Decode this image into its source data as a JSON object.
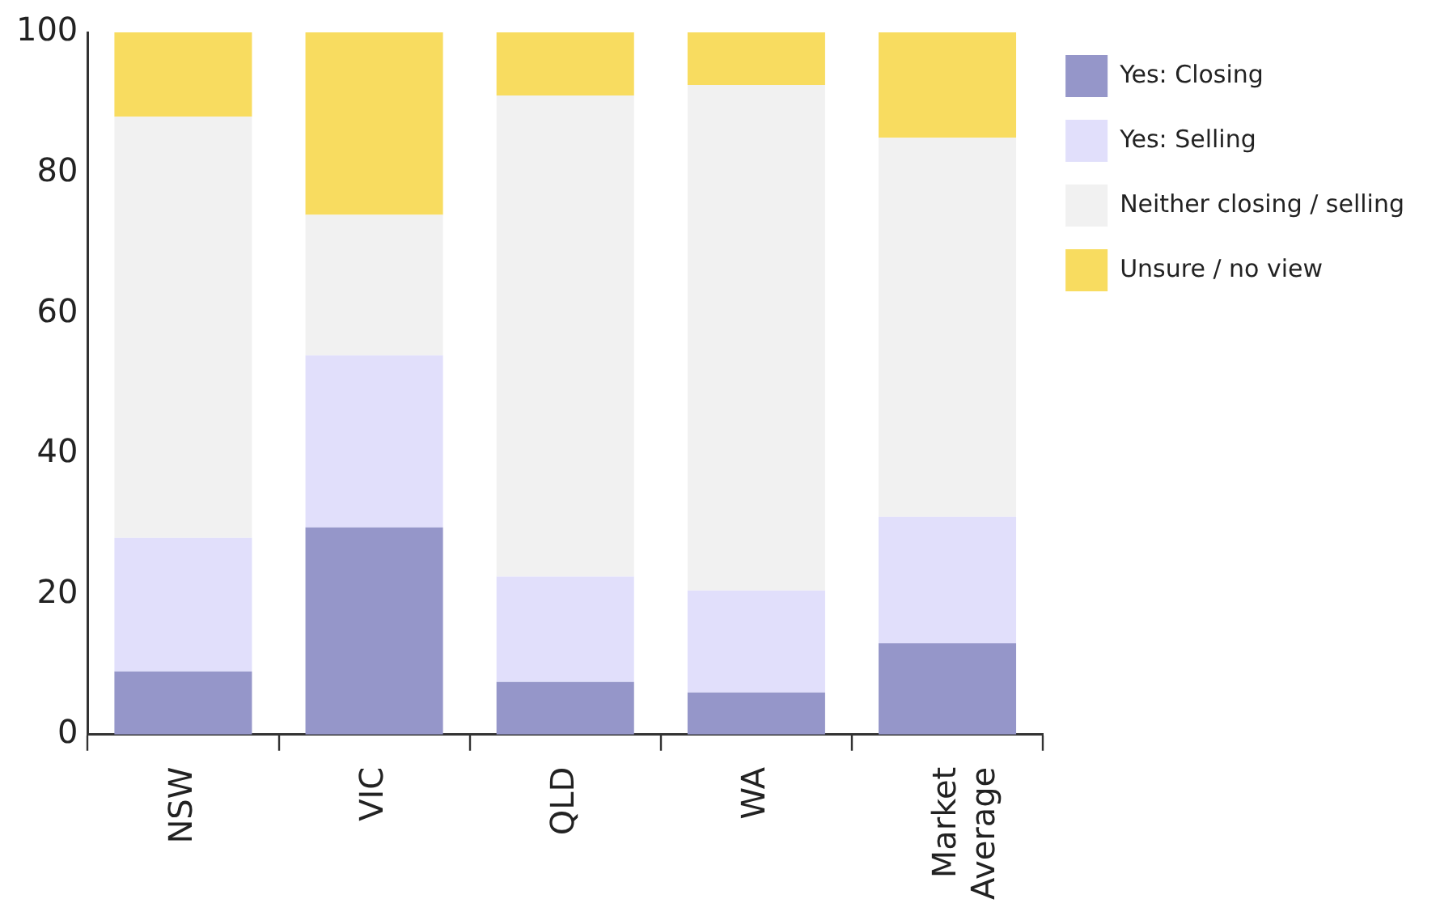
{
  "chart_data": {
    "type": "bar",
    "stacked": true,
    "categories": [
      "NSW",
      "VIC",
      "QLD",
      "WA",
      "Market Average"
    ],
    "series": [
      {
        "name": "Yes: Closing",
        "color": "#9596c9",
        "values": [
          9,
          29.5,
          7.5,
          6,
          13
        ]
      },
      {
        "name": "Yes: Selling",
        "color": "#e1dffb",
        "values": [
          19,
          24.5,
          15,
          14.5,
          18
        ]
      },
      {
        "name": "Neither closing / selling",
        "color": "#f1f1f1",
        "values": [
          60,
          20,
          68.5,
          72,
          54
        ]
      },
      {
        "name": "Unsure / no view",
        "color": "#f8dc60",
        "values": [
          12,
          26,
          9,
          7.5,
          15
        ]
      }
    ],
    "ylim": [
      0,
      100
    ],
    "yticks": [
      0,
      20,
      40,
      60,
      80,
      100
    ],
    "grid": false,
    "legend": "top right"
  }
}
